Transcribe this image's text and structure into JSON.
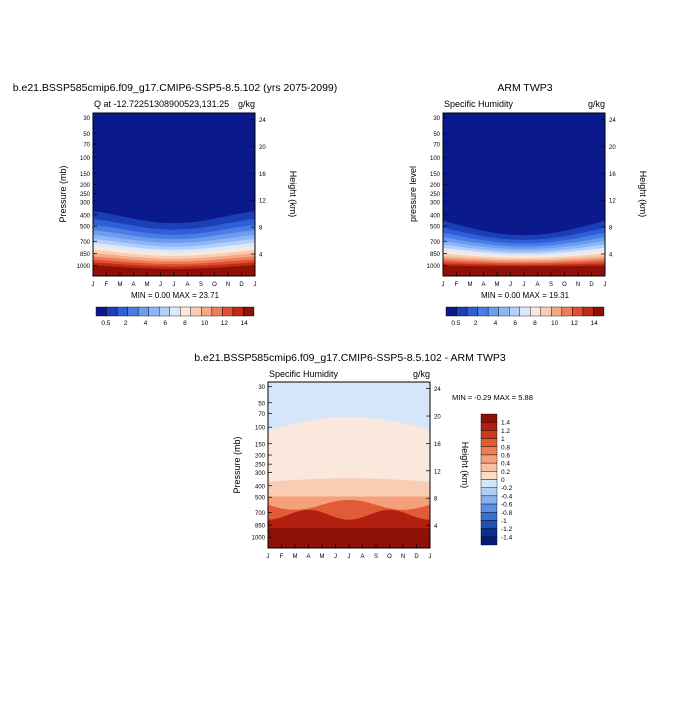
{
  "chart_data": [
    {
      "type": "heatmap",
      "title": "b.e21.BSSP585cmip6.f09_g17.CMIP6-SSP5-8.5.102 (yrs 2075-2099)",
      "subtitle_left": "Q at -12.72251308900523,131.25",
      "subtitle_right": "g/kg",
      "ylabel": "Pressure (mb)",
      "ylabel_right": "Height (km)",
      "x_ticks": [
        "J",
        "F",
        "M",
        "A",
        "M",
        "J",
        "J",
        "A",
        "S",
        "O",
        "N",
        "D",
        "J"
      ],
      "y_ticks": [
        "30",
        "50",
        "70",
        "100",
        "150",
        "200",
        "250",
        "300",
        "400",
        "500",
        "700",
        "850",
        "1000"
      ],
      "height_ticks": [
        "24",
        "20",
        "16",
        "12",
        "8",
        "4"
      ],
      "min_max_text": "MIN =   0.00 MAX =  23.71",
      "colorbar_labels": [
        "0.5",
        "2",
        "4",
        "6",
        "8",
        "10",
        "12",
        "14"
      ],
      "min": 0.0,
      "max": 23.71
    },
    {
      "type": "heatmap",
      "title": "ARM TWP3",
      "subtitle_left": "Specific Humidity",
      "subtitle_right": "g/kg",
      "ylabel": "pressure level",
      "ylabel_right": "Height (km)",
      "x_ticks": [
        "J",
        "F",
        "M",
        "A",
        "M",
        "J",
        "J",
        "A",
        "S",
        "O",
        "N",
        "D",
        "J"
      ],
      "y_ticks": [
        "30",
        "50",
        "70",
        "100",
        "150",
        "200",
        "250",
        "300",
        "400",
        "500",
        "700",
        "850",
        "1000"
      ],
      "height_ticks": [
        "24",
        "20",
        "16",
        "12",
        "8",
        "4"
      ],
      "min_max_text": "MIN =   0.00 MAX =  19.31",
      "colorbar_labels": [
        "0.5",
        "2",
        "4",
        "6",
        "8",
        "10",
        "12",
        "14"
      ],
      "min": 0.0,
      "max": 19.31
    },
    {
      "type": "heatmap",
      "title": "b.e21.BSSP585cmip6.f09_g17.CMIP6-SSP5-8.5.102 - ARM TWP3",
      "subtitle_left": "Specific Humidity",
      "subtitle_right": "g/kg",
      "ylabel": "Pressure (mb)",
      "ylabel_right": "Height (km)",
      "x_ticks": [
        "J",
        "F",
        "M",
        "A",
        "M",
        "J",
        "J",
        "A",
        "S",
        "O",
        "N",
        "D",
        "J"
      ],
      "y_ticks": [
        "30",
        "50",
        "70",
        "100",
        "150",
        "200",
        "250",
        "300",
        "400",
        "500",
        "700",
        "850",
        "1000"
      ],
      "height_ticks": [
        "24",
        "20",
        "16",
        "12",
        "8",
        "4"
      ],
      "min_max_text": "MIN =  -0.29 MAX =   5.88",
      "colorbar_labels": [
        "1.4",
        "1.2",
        "1",
        "0.8",
        "0.6",
        "0.4",
        "0.2",
        "0",
        "-0.2",
        "-0.4",
        "-0.6",
        "-0.8",
        "-1",
        "-1.2",
        "-1.4"
      ],
      "min": -0.29,
      "max": 5.88
    }
  ],
  "colors": {
    "seq": [
      "#0a1a8c",
      "#1c3fb8",
      "#2f5fd8",
      "#4a7ee6",
      "#6a9cf0",
      "#8fb6f4",
      "#b5d0f8",
      "#dce8fc",
      "#fbe8dc",
      "#f9cdb4",
      "#f5a882",
      "#ef7e58",
      "#e04f32",
      "#c02a18",
      "#8e1006"
    ],
    "diff": [
      "#8e1006",
      "#b01f0f",
      "#cc3a1e",
      "#e05b36",
      "#ec7e56",
      "#f4a07a",
      "#f8c0a0",
      "#fbdcc6",
      "#d6e6fa",
      "#b0cdf4",
      "#88b0ec",
      "#5e8fe0",
      "#3a6ed0",
      "#2050b8",
      "#0a2e96",
      "#061a7a"
    ]
  }
}
